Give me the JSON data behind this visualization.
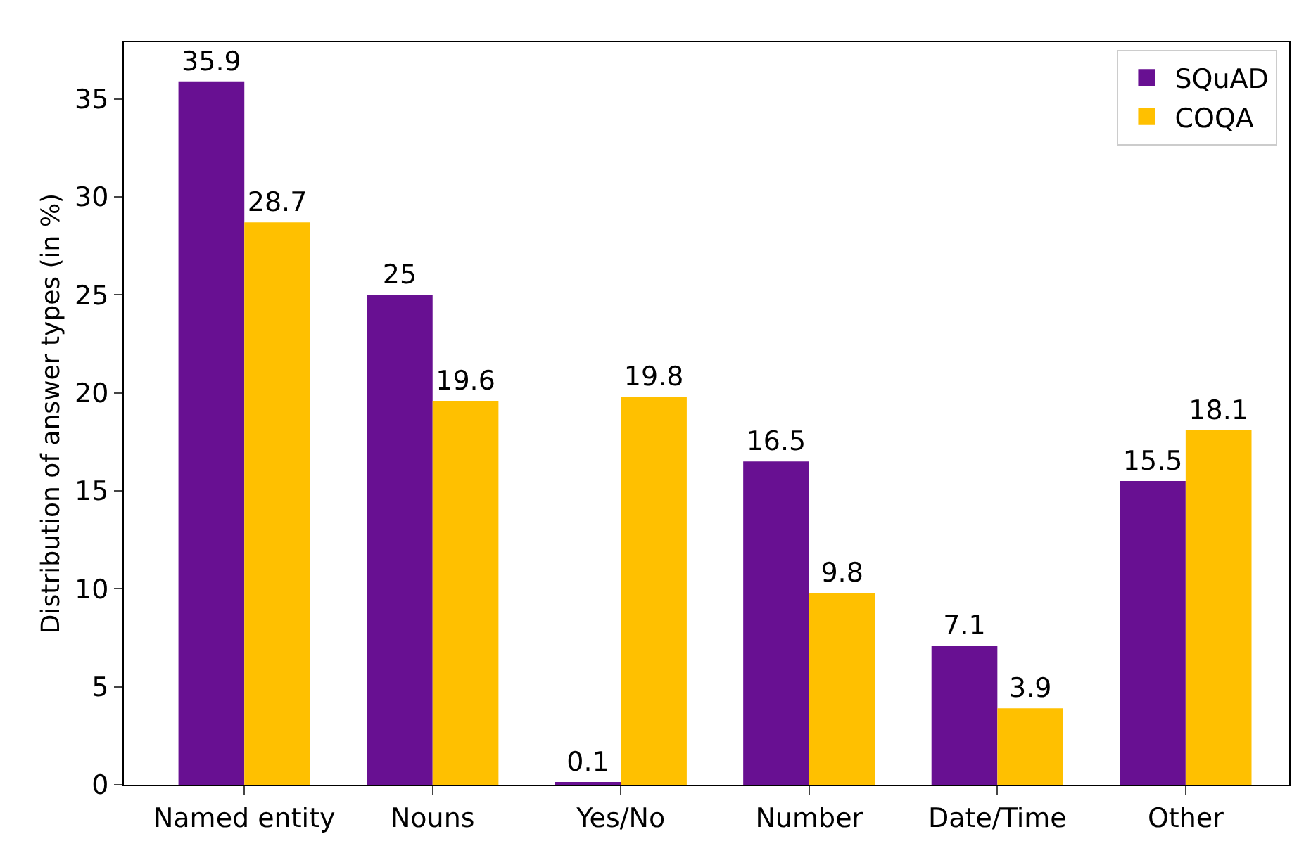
{
  "chart_data": {
    "type": "bar",
    "ylabel": "Distribution of answer types (in %)",
    "categories": [
      "Named entity",
      "Nouns",
      "Yes/No",
      "Number",
      "Date/Time",
      "Other"
    ],
    "series": [
      {
        "name": "SQuAD",
        "color": "#681092",
        "values": [
          35.9,
          25,
          0.1,
          16.5,
          7.1,
          15.5
        ]
      },
      {
        "name": "COQA",
        "color": "#ffc000",
        "values": [
          28.7,
          19.6,
          19.8,
          9.8,
          3.9,
          18.1
        ]
      }
    ],
    "ylim": [
      0,
      37.9
    ],
    "yticks": [
      0,
      5,
      10,
      15,
      20,
      25,
      30,
      35
    ],
    "data_labels": true,
    "grid": false,
    "legend": "top right"
  }
}
